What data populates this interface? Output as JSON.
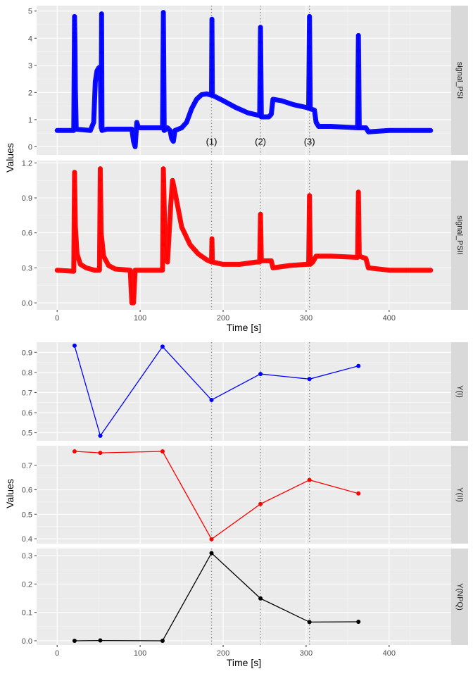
{
  "chart_data": [
    {
      "type": "line",
      "xlabel": "Time [s]",
      "ylabel": "Values",
      "xlim": [
        0,
        450
      ],
      "xticks": [
        0,
        100,
        200,
        300,
        400
      ],
      "vlines": [
        186,
        245,
        304
      ],
      "annotations": [
        {
          "x": 186,
          "label": "(1)"
        },
        {
          "x": 245,
          "label": "(2)"
        },
        {
          "x": 304,
          "label": "(3)"
        }
      ],
      "panels": [
        {
          "name": "signal_PSI",
          "color": "#0000ff",
          "ylim": [
            -0.3,
            5.2
          ],
          "yticks": [
            0,
            1,
            2,
            3,
            4,
            5
          ],
          "points": [
            [
              0,
              0.6
            ],
            [
              20,
              0.6
            ],
            [
              21,
              4.8
            ],
            [
              21.5,
              3.9
            ],
            [
              22,
              2.1
            ],
            [
              23,
              0.65
            ],
            [
              40,
              0.6
            ],
            [
              44,
              0.9
            ],
            [
              46,
              2.4
            ],
            [
              48,
              2.8
            ],
            [
              50,
              2.9
            ],
            [
              52,
              2.95
            ],
            [
              53,
              0.7
            ],
            [
              53.5,
              4.9
            ],
            [
              54,
              0.6
            ],
            [
              60,
              0.65
            ],
            [
              90,
              0.65
            ],
            [
              92,
              0.2
            ],
            [
              94,
              0.0
            ],
            [
              96,
              0.9
            ],
            [
              98,
              0.7
            ],
            [
              125,
              0.7
            ],
            [
              127,
              0.7
            ],
            [
              128,
              4.95
            ],
            [
              129,
              0.6
            ],
            [
              133,
              0.7
            ],
            [
              136,
              0.6
            ],
            [
              138,
              0.3
            ],
            [
              140,
              0.2
            ],
            [
              142,
              0.6
            ],
            [
              150,
              0.7
            ],
            [
              156,
              0.9
            ],
            [
              162,
              1.4
            ],
            [
              168,
              1.75
            ],
            [
              174,
              1.92
            ],
            [
              180,
              1.95
            ],
            [
              186,
              1.9
            ],
            [
              186.5,
              4.7
            ],
            [
              187,
              1.9
            ],
            [
              200,
              1.7
            ],
            [
              215,
              1.45
            ],
            [
              230,
              1.25
            ],
            [
              244,
              1.15
            ],
            [
              245,
              4.4
            ],
            [
              246,
              1.1
            ],
            [
              255,
              1.1
            ],
            [
              258,
              1.2
            ],
            [
              260,
              1.75
            ],
            [
              270,
              1.7
            ],
            [
              285,
              1.55
            ],
            [
              300,
              1.45
            ],
            [
              303,
              1.42
            ],
            [
              304,
              4.8
            ],
            [
              305,
              1.4
            ],
            [
              310,
              1.35
            ],
            [
              312,
              0.9
            ],
            [
              315,
              0.75
            ],
            [
              330,
              0.75
            ],
            [
              362,
              0.7
            ],
            [
              363,
              4.1
            ],
            [
              364,
              0.7
            ],
            [
              372,
              0.7
            ],
            [
              375,
              0.55
            ],
            [
              400,
              0.6
            ],
            [
              450,
              0.6
            ]
          ]
        },
        {
          "name": "signal_PSII",
          "color": "#ff0000",
          "ylim": [
            -0.06,
            1.22
          ],
          "yticks": [
            0.0,
            0.3,
            0.6,
            0.9,
            1.2
          ],
          "points": [
            [
              0,
              0.28
            ],
            [
              20,
              0.27
            ],
            [
              21,
              1.12
            ],
            [
              22,
              0.65
            ],
            [
              24,
              0.42
            ],
            [
              28,
              0.33
            ],
            [
              35,
              0.3
            ],
            [
              45,
              0.28
            ],
            [
              51,
              0.28
            ],
            [
              52,
              1.15
            ],
            [
              53,
              0.6
            ],
            [
              56,
              0.4
            ],
            [
              62,
              0.32
            ],
            [
              70,
              0.29
            ],
            [
              88,
              0.28
            ],
            [
              90,
              0.0
            ],
            [
              92,
              0.0
            ],
            [
              94,
              0.28
            ],
            [
              125,
              0.28
            ],
            [
              127,
              0.28
            ],
            [
              128,
              1.15
            ],
            [
              130,
              0.5
            ],
            [
              133,
              0.35
            ],
            [
              137,
              0.85
            ],
            [
              139,
              1.05
            ],
            [
              142,
              0.95
            ],
            [
              150,
              0.65
            ],
            [
              160,
              0.5
            ],
            [
              170,
              0.42
            ],
            [
              180,
              0.37
            ],
            [
              186,
              0.35
            ],
            [
              186.5,
              0.55
            ],
            [
              187,
              0.35
            ],
            [
              200,
              0.33
            ],
            [
              220,
              0.33
            ],
            [
              240,
              0.35
            ],
            [
              244,
              0.35
            ],
            [
              245,
              0.76
            ],
            [
              246,
              0.36
            ],
            [
              258,
              0.36
            ],
            [
              260,
              0.3
            ],
            [
              280,
              0.32
            ],
            [
              300,
              0.33
            ],
            [
              303,
              0.33
            ],
            [
              304,
              0.92
            ],
            [
              305,
              0.33
            ],
            [
              308,
              0.35
            ],
            [
              312,
              0.4
            ],
            [
              330,
              0.4
            ],
            [
              362,
              0.39
            ],
            [
              363,
              0.95
            ],
            [
              364,
              0.4
            ],
            [
              372,
              0.38
            ],
            [
              375,
              0.3
            ],
            [
              400,
              0.28
            ],
            [
              450,
              0.28
            ]
          ]
        }
      ]
    },
    {
      "type": "line",
      "xlabel": "Time [s]",
      "ylabel": "Values",
      "xlim": [
        0,
        450
      ],
      "xticks": [
        0,
        100,
        200,
        300,
        400
      ],
      "vlines": [
        186,
        245,
        304
      ],
      "x": [
        21,
        52,
        127,
        186,
        245,
        304,
        363
      ],
      "panels": [
        {
          "name": "Y(I)",
          "color": "#0000ff",
          "ylim": [
            0.46,
            0.95
          ],
          "yticks": [
            0.5,
            0.6,
            0.7,
            0.8,
            0.9
          ],
          "values": [
            0.933,
            0.485,
            0.928,
            0.663,
            0.792,
            0.767,
            0.832
          ]
        },
        {
          "name": "Y(II)",
          "color": "#ff0000",
          "ylim": [
            0.38,
            0.78
          ],
          "yticks": [
            0.4,
            0.5,
            0.6,
            0.7
          ],
          "values": [
            0.757,
            0.751,
            0.757,
            0.398,
            0.542,
            0.64,
            0.585
          ]
        },
        {
          "name": "Y(NPQ)",
          "color": "#000000",
          "ylim": [
            -0.015,
            0.325
          ],
          "yticks": [
            0.0,
            0.1,
            0.2,
            0.3
          ],
          "values": [
            0.0,
            0.001,
            0.0,
            0.309,
            0.149,
            0.066,
            0.067
          ]
        }
      ]
    }
  ]
}
